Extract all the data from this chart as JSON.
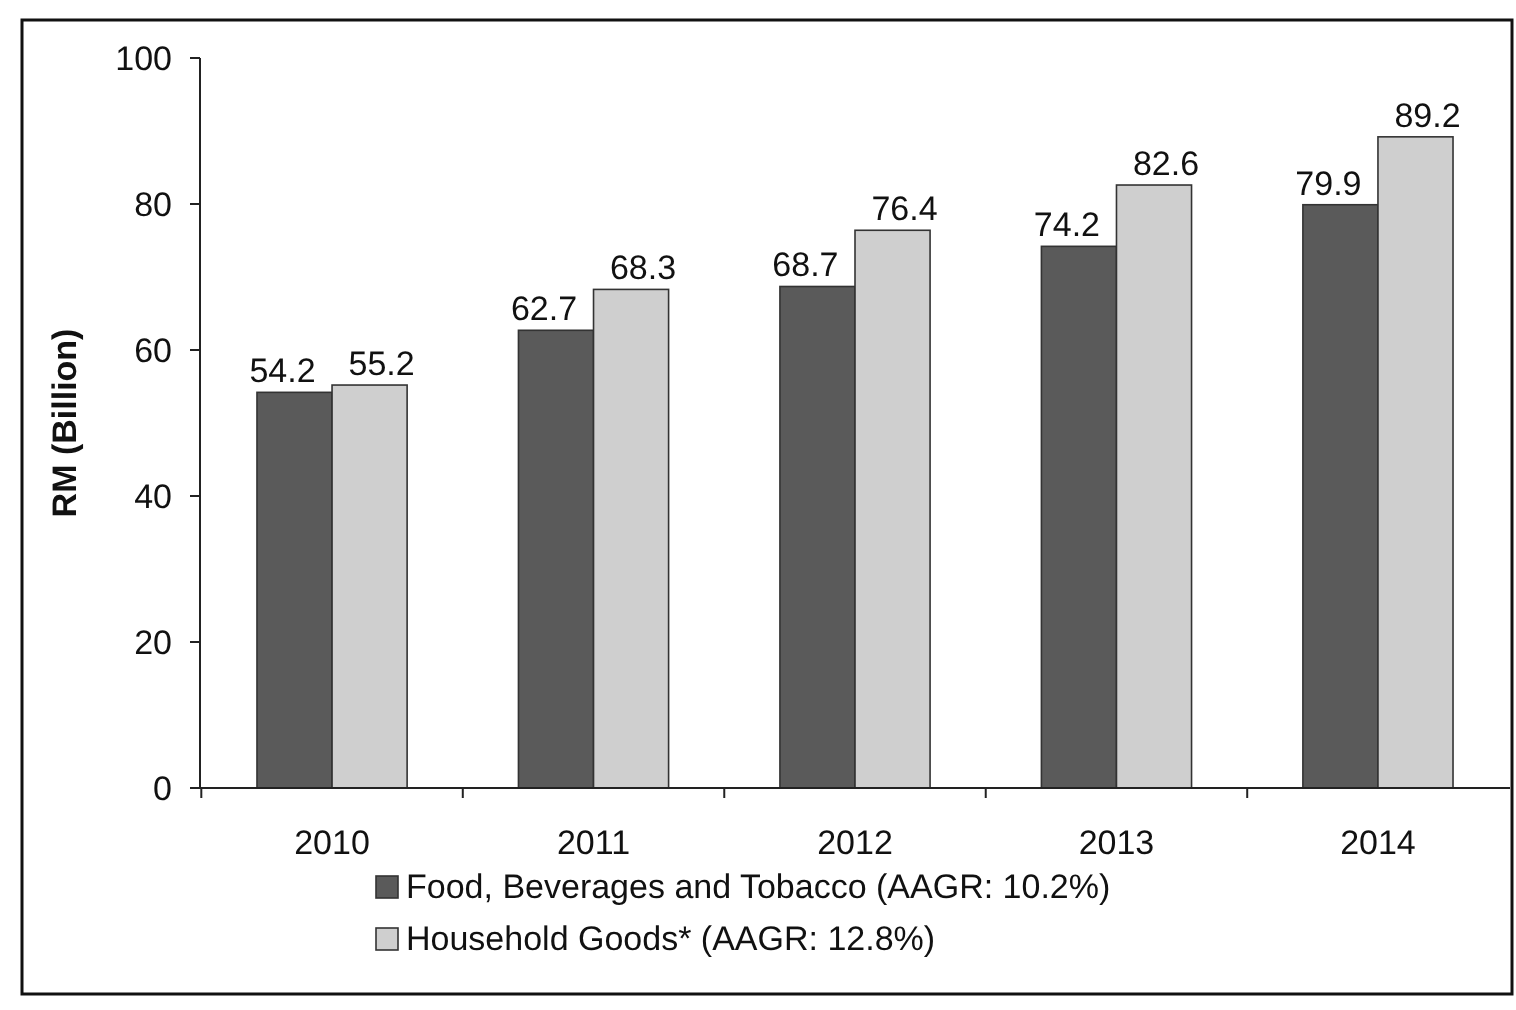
{
  "chart_data": {
    "type": "bar",
    "ylabel": "RM (Billion)",
    "categories": [
      "2010",
      "2011",
      "2012",
      "2013",
      "2014"
    ],
    "series": [
      {
        "name": "Food, Beverages and Tobacco (AAGR: 10.2%)",
        "color": "#5a5a5a",
        "values": [
          54.2,
          62.7,
          68.7,
          74.2,
          79.9
        ]
      },
      {
        "name": "Household Goods* (AAGR: 12.8%)",
        "color": "#cfcfcf",
        "values": [
          55.2,
          68.3,
          76.4,
          82.6,
          89.2
        ]
      }
    ],
    "ylim": [
      0,
      100
    ],
    "yticks": [
      0,
      20,
      40,
      60,
      80,
      100
    ],
    "data_labels": true,
    "legend": "bottom"
  }
}
